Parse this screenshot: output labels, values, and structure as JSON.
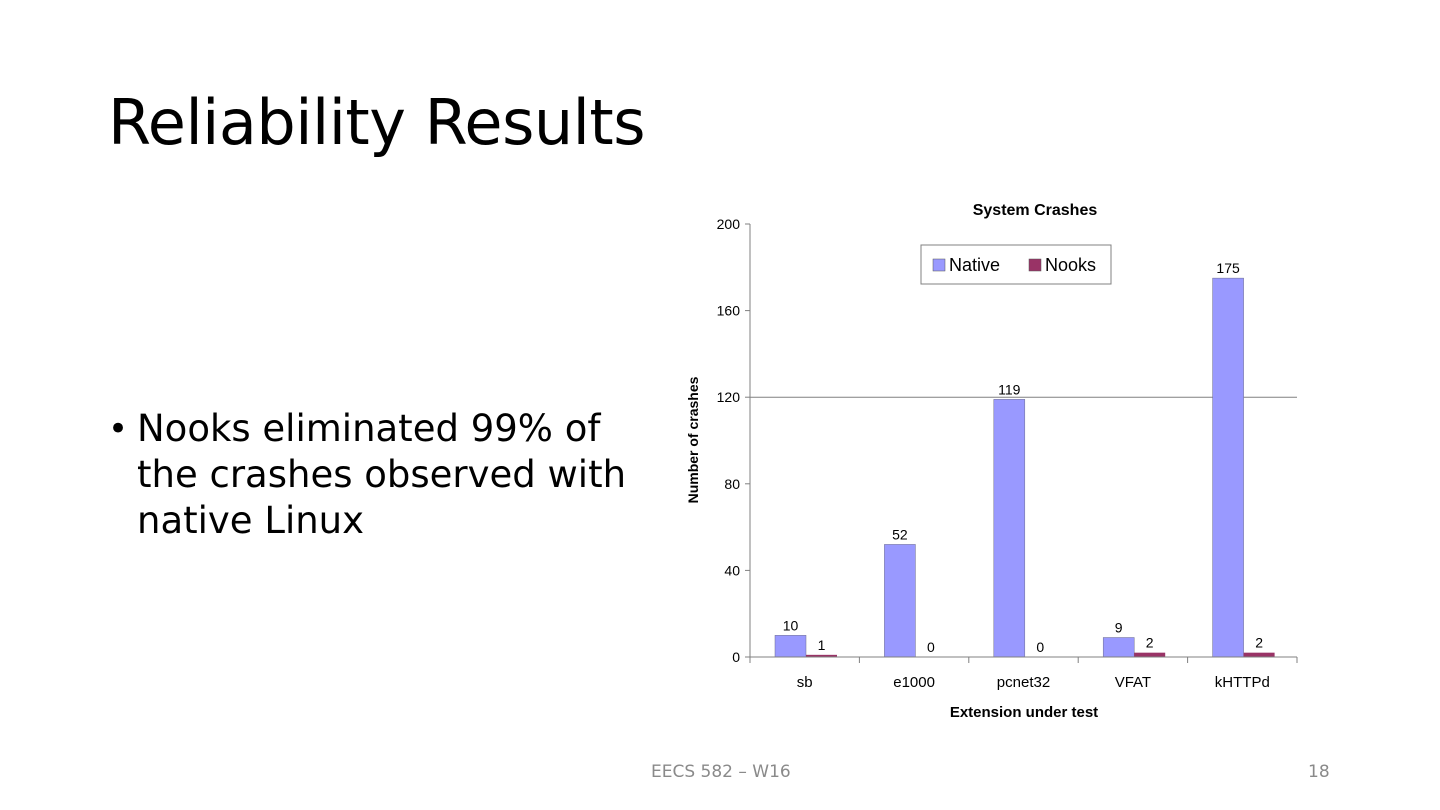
{
  "slide": {
    "title": "Reliability Results",
    "bullet": "Nooks eliminated 99% of the crashes observed with native Linux",
    "footer_text": "EECS 582 – W16",
    "page_number": "18"
  },
  "colors": {
    "native": "#9999ff",
    "nooks": "#993366"
  },
  "chart_data": {
    "type": "bar",
    "title": "System Crashes",
    "xlabel": "Extension under test",
    "ylabel": "Number of crashes",
    "categories": [
      "sb",
      "e1000",
      "pcnet32",
      "VFAT",
      "kHTTPd"
    ],
    "series": [
      {
        "name": "Native",
        "values": [
          10,
          52,
          119,
          9,
          175
        ]
      },
      {
        "name": "Nooks",
        "values": [
          1,
          0,
          0,
          2,
          2
        ]
      }
    ],
    "ylim": [
      0,
      200
    ],
    "yticks": [
      "0",
      "40",
      "80",
      "120",
      "160",
      "200"
    ],
    "gridlines": [
      120
    ],
    "legend": "top-center",
    "data_labels": true
  }
}
